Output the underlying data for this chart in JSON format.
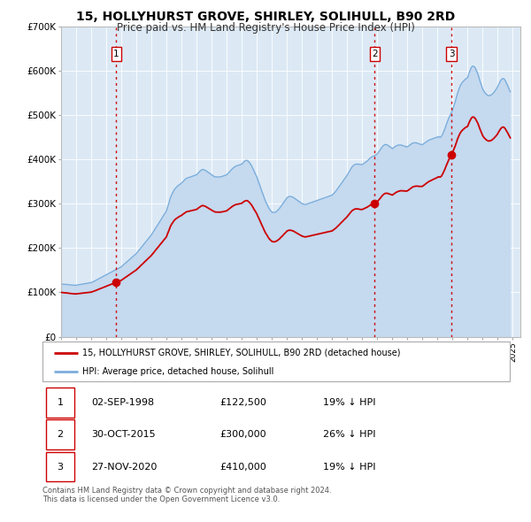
{
  "title": "15, HOLLYHURST GROVE, SHIRLEY, SOLIHULL, B90 2RD",
  "subtitle": "Price paid vs. HM Land Registry's House Price Index (HPI)",
  "title_fontsize": 10,
  "subtitle_fontsize": 8.5,
  "background_color": "#ffffff",
  "plot_bg_color": "#dce9f5",
  "ylim": [
    0,
    700000
  ],
  "yticks": [
    0,
    100000,
    200000,
    300000,
    400000,
    500000,
    600000,
    700000
  ],
  "ytick_labels": [
    "£0",
    "£100K",
    "£200K",
    "£300K",
    "£400K",
    "£500K",
    "£600K",
    "£700K"
  ],
  "xlim_start": 1995.0,
  "xlim_end": 2025.5,
  "sale_color": "#cc0000",
  "hpi_color": "#7aaddb",
  "hpi_fill_color": "#c5d9ef",
  "sale_marker_color": "#cc0000",
  "sale_marker_size": 7,
  "vline_color": "#cc0000",
  "sales": [
    {
      "date_num": 1998.67,
      "price": 122500,
      "label": "1"
    },
    {
      "date_num": 2015.83,
      "price": 300000,
      "label": "2"
    },
    {
      "date_num": 2020.92,
      "price": 410000,
      "label": "3"
    }
  ],
  "legend_entries": [
    "15, HOLLYHURST GROVE, SHIRLEY, SOLIHULL, B90 2RD (detached house)",
    "HPI: Average price, detached house, Solihull"
  ],
  "table_rows": [
    {
      "num": "1",
      "date": "02-SEP-1998",
      "price": "£122,500",
      "pct": "19% ↓ HPI"
    },
    {
      "num": "2",
      "date": "30-OCT-2015",
      "price": "£300,000",
      "pct": "26% ↓ HPI"
    },
    {
      "num": "3",
      "date": "27-NOV-2020",
      "price": "£410,000",
      "pct": "19% ↓ HPI"
    }
  ],
  "footnote": "Contains HM Land Registry data © Crown copyright and database right 2024.\nThis data is licensed under the Open Government Licence v3.0.",
  "grid_color": "#ffffff",
  "hpi_data": [
    [
      1995.0,
      119000
    ],
    [
      1995.08,
      118500
    ],
    [
      1995.17,
      118200
    ],
    [
      1995.25,
      117800
    ],
    [
      1995.33,
      118000
    ],
    [
      1995.42,
      117500
    ],
    [
      1995.5,
      117000
    ],
    [
      1995.58,
      116800
    ],
    [
      1995.67,
      116500
    ],
    [
      1995.75,
      116200
    ],
    [
      1995.83,
      116000
    ],
    [
      1995.92,
      115800
    ],
    [
      1996.0,
      116000
    ],
    [
      1996.08,
      116500
    ],
    [
      1996.17,
      117000
    ],
    [
      1996.25,
      117500
    ],
    [
      1996.33,
      118000
    ],
    [
      1996.42,
      118500
    ],
    [
      1996.5,
      119000
    ],
    [
      1996.58,
      119500
    ],
    [
      1996.67,
      120000
    ],
    [
      1996.75,
      120500
    ],
    [
      1996.83,
      121000
    ],
    [
      1996.92,
      121500
    ],
    [
      1997.0,
      122000
    ],
    [
      1997.08,
      123200
    ],
    [
      1997.17,
      124500
    ],
    [
      1997.25,
      126000
    ],
    [
      1997.33,
      127500
    ],
    [
      1997.42,
      129000
    ],
    [
      1997.5,
      130500
    ],
    [
      1997.58,
      132000
    ],
    [
      1997.67,
      133500
    ],
    [
      1997.75,
      135000
    ],
    [
      1997.83,
      136500
    ],
    [
      1997.92,
      138000
    ],
    [
      1998.0,
      139500
    ],
    [
      1998.08,
      141000
    ],
    [
      1998.17,
      142500
    ],
    [
      1998.25,
      144000
    ],
    [
      1998.33,
      145500
    ],
    [
      1998.42,
      147000
    ],
    [
      1998.5,
      148500
    ],
    [
      1998.58,
      150000
    ],
    [
      1998.67,
      151500
    ],
    [
      1998.75,
      153000
    ],
    [
      1998.83,
      154500
    ],
    [
      1998.92,
      156000
    ],
    [
      1999.0,
      157500
    ],
    [
      1999.08,
      160000
    ],
    [
      1999.17,
      162500
    ],
    [
      1999.25,
      165000
    ],
    [
      1999.33,
      167500
    ],
    [
      1999.42,
      170000
    ],
    [
      1999.5,
      172500
    ],
    [
      1999.58,
      175000
    ],
    [
      1999.67,
      177500
    ],
    [
      1999.75,
      180000
    ],
    [
      1999.83,
      182500
    ],
    [
      1999.92,
      185000
    ],
    [
      2000.0,
      187500
    ],
    [
      2000.08,
      191000
    ],
    [
      2000.17,
      194500
    ],
    [
      2000.25,
      198000
    ],
    [
      2000.33,
      201500
    ],
    [
      2000.42,
      205000
    ],
    [
      2000.5,
      208500
    ],
    [
      2000.58,
      212000
    ],
    [
      2000.67,
      215500
    ],
    [
      2000.75,
      219000
    ],
    [
      2000.83,
      222500
    ],
    [
      2000.92,
      226000
    ],
    [
      2001.0,
      229500
    ],
    [
      2001.08,
      234000
    ],
    [
      2001.17,
      238500
    ],
    [
      2001.25,
      243000
    ],
    [
      2001.33,
      247500
    ],
    [
      2001.42,
      252000
    ],
    [
      2001.5,
      256500
    ],
    [
      2001.58,
      261000
    ],
    [
      2001.67,
      265500
    ],
    [
      2001.75,
      270000
    ],
    [
      2001.83,
      274500
    ],
    [
      2001.92,
      279000
    ],
    [
      2002.0,
      283500
    ],
    [
      2002.08,
      293000
    ],
    [
      2002.17,
      302500
    ],
    [
      2002.25,
      312000
    ],
    [
      2002.33,
      319000
    ],
    [
      2002.42,
      325000
    ],
    [
      2002.5,
      330000
    ],
    [
      2002.58,
      334000
    ],
    [
      2002.67,
      337000
    ],
    [
      2002.75,
      340000
    ],
    [
      2002.83,
      342000
    ],
    [
      2002.92,
      344000
    ],
    [
      2003.0,
      346000
    ],
    [
      2003.08,
      349000
    ],
    [
      2003.17,
      352000
    ],
    [
      2003.25,
      355000
    ],
    [
      2003.33,
      357000
    ],
    [
      2003.42,
      358000
    ],
    [
      2003.5,
      359000
    ],
    [
      2003.58,
      360000
    ],
    [
      2003.67,
      361000
    ],
    [
      2003.75,
      362000
    ],
    [
      2003.83,
      363000
    ],
    [
      2003.92,
      364000
    ],
    [
      2004.0,
      365000
    ],
    [
      2004.08,
      368000
    ],
    [
      2004.17,
      371000
    ],
    [
      2004.25,
      374000
    ],
    [
      2004.33,
      376000
    ],
    [
      2004.42,
      377000
    ],
    [
      2004.5,
      376000
    ],
    [
      2004.58,
      375000
    ],
    [
      2004.67,
      373000
    ],
    [
      2004.75,
      371000
    ],
    [
      2004.83,
      369000
    ],
    [
      2004.92,
      367000
    ],
    [
      2005.0,
      365000
    ],
    [
      2005.08,
      363000
    ],
    [
      2005.17,
      361000
    ],
    [
      2005.25,
      360000
    ],
    [
      2005.33,
      360000
    ],
    [
      2005.42,
      360000
    ],
    [
      2005.5,
      360000
    ],
    [
      2005.58,
      360500
    ],
    [
      2005.67,
      361000
    ],
    [
      2005.75,
      362000
    ],
    [
      2005.83,
      363000
    ],
    [
      2005.92,
      364000
    ],
    [
      2006.0,
      365000
    ],
    [
      2006.08,
      368000
    ],
    [
      2006.17,
      371000
    ],
    [
      2006.25,
      374000
    ],
    [
      2006.33,
      377000
    ],
    [
      2006.42,
      380000
    ],
    [
      2006.5,
      382000
    ],
    [
      2006.58,
      384000
    ],
    [
      2006.67,
      385000
    ],
    [
      2006.75,
      386000
    ],
    [
      2006.83,
      387000
    ],
    [
      2006.92,
      388000
    ],
    [
      2007.0,
      389000
    ],
    [
      2007.08,
      392000
    ],
    [
      2007.17,
      395000
    ],
    [
      2007.25,
      397000
    ],
    [
      2007.33,
      397500
    ],
    [
      2007.42,
      396000
    ],
    [
      2007.5,
      393000
    ],
    [
      2007.58,
      389000
    ],
    [
      2007.67,
      384000
    ],
    [
      2007.75,
      378000
    ],
    [
      2007.83,
      372000
    ],
    [
      2007.92,
      366000
    ],
    [
      2008.0,
      360000
    ],
    [
      2008.08,
      352000
    ],
    [
      2008.17,
      344000
    ],
    [
      2008.25,
      336000
    ],
    [
      2008.33,
      328000
    ],
    [
      2008.42,
      320000
    ],
    [
      2008.5,
      312000
    ],
    [
      2008.58,
      305000
    ],
    [
      2008.67,
      299000
    ],
    [
      2008.75,
      293000
    ],
    [
      2008.83,
      288000
    ],
    [
      2008.92,
      284000
    ],
    [
      2009.0,
      281000
    ],
    [
      2009.08,
      280000
    ],
    [
      2009.17,
      280000
    ],
    [
      2009.25,
      281000
    ],
    [
      2009.33,
      283000
    ],
    [
      2009.42,
      286000
    ],
    [
      2009.5,
      289000
    ],
    [
      2009.58,
      293000
    ],
    [
      2009.67,
      297000
    ],
    [
      2009.75,
      301000
    ],
    [
      2009.83,
      305000
    ],
    [
      2009.92,
      309000
    ],
    [
      2010.0,
      313000
    ],
    [
      2010.08,
      315000
    ],
    [
      2010.17,
      316000
    ],
    [
      2010.25,
      316000
    ],
    [
      2010.33,
      315000
    ],
    [
      2010.42,
      314000
    ],
    [
      2010.5,
      312000
    ],
    [
      2010.58,
      310000
    ],
    [
      2010.67,
      308000
    ],
    [
      2010.75,
      306000
    ],
    [
      2010.83,
      304000
    ],
    [
      2010.92,
      302000
    ],
    [
      2011.0,
      300000
    ],
    [
      2011.08,
      299000
    ],
    [
      2011.17,
      298000
    ],
    [
      2011.25,
      298000
    ],
    [
      2011.33,
      299000
    ],
    [
      2011.42,
      300000
    ],
    [
      2011.5,
      301000
    ],
    [
      2011.58,
      302000
    ],
    [
      2011.67,
      303000
    ],
    [
      2011.75,
      304000
    ],
    [
      2011.83,
      305000
    ],
    [
      2011.92,
      306000
    ],
    [
      2012.0,
      307000
    ],
    [
      2012.08,
      308000
    ],
    [
      2012.17,
      309000
    ],
    [
      2012.25,
      310000
    ],
    [
      2012.33,
      311000
    ],
    [
      2012.42,
      312000
    ],
    [
      2012.5,
      313000
    ],
    [
      2012.58,
      314000
    ],
    [
      2012.67,
      315000
    ],
    [
      2012.75,
      316000
    ],
    [
      2012.83,
      317000
    ],
    [
      2012.92,
      318000
    ],
    [
      2013.0,
      319000
    ],
    [
      2013.08,
      322000
    ],
    [
      2013.17,
      325000
    ],
    [
      2013.25,
      328000
    ],
    [
      2013.33,
      332000
    ],
    [
      2013.42,
      336000
    ],
    [
      2013.5,
      340000
    ],
    [
      2013.58,
      344000
    ],
    [
      2013.67,
      348000
    ],
    [
      2013.75,
      352000
    ],
    [
      2013.83,
      356000
    ],
    [
      2013.92,
      360000
    ],
    [
      2014.0,
      364000
    ],
    [
      2014.08,
      369000
    ],
    [
      2014.17,
      374000
    ],
    [
      2014.25,
      379000
    ],
    [
      2014.33,
      383000
    ],
    [
      2014.42,
      386000
    ],
    [
      2014.5,
      388000
    ],
    [
      2014.58,
      389000
    ],
    [
      2014.67,
      389000
    ],
    [
      2014.75,
      389000
    ],
    [
      2014.83,
      388000
    ],
    [
      2014.92,
      388000
    ],
    [
      2015.0,
      388000
    ],
    [
      2015.08,
      390000
    ],
    [
      2015.17,
      392000
    ],
    [
      2015.25,
      394000
    ],
    [
      2015.33,
      396000
    ],
    [
      2015.42,
      399000
    ],
    [
      2015.5,
      402000
    ],
    [
      2015.58,
      404000
    ],
    [
      2015.67,
      406000
    ],
    [
      2015.75,
      407000
    ],
    [
      2015.83,
      408000
    ],
    [
      2015.92,
      410000
    ],
    [
      2016.0,
      412000
    ],
    [
      2016.08,
      416000
    ],
    [
      2016.17,
      420000
    ],
    [
      2016.25,
      424000
    ],
    [
      2016.33,
      428000
    ],
    [
      2016.42,
      431000
    ],
    [
      2016.5,
      433000
    ],
    [
      2016.58,
      433000
    ],
    [
      2016.67,
      432000
    ],
    [
      2016.75,
      430000
    ],
    [
      2016.83,
      428000
    ],
    [
      2016.92,
      426000
    ],
    [
      2017.0,
      424000
    ],
    [
      2017.08,
      426000
    ],
    [
      2017.17,
      428000
    ],
    [
      2017.25,
      430000
    ],
    [
      2017.33,
      431000
    ],
    [
      2017.42,
      432000
    ],
    [
      2017.5,
      432000
    ],
    [
      2017.58,
      432000
    ],
    [
      2017.67,
      431000
    ],
    [
      2017.75,
      430000
    ],
    [
      2017.83,
      429000
    ],
    [
      2017.92,
      428000
    ],
    [
      2018.0,
      428000
    ],
    [
      2018.08,
      430000
    ],
    [
      2018.17,
      432000
    ],
    [
      2018.25,
      434000
    ],
    [
      2018.33,
      436000
    ],
    [
      2018.42,
      437000
    ],
    [
      2018.5,
      437000
    ],
    [
      2018.58,
      437000
    ],
    [
      2018.67,
      436000
    ],
    [
      2018.75,
      435000
    ],
    [
      2018.83,
      434000
    ],
    [
      2018.92,
      433000
    ],
    [
      2019.0,
      433000
    ],
    [
      2019.08,
      435000
    ],
    [
      2019.17,
      437000
    ],
    [
      2019.25,
      439000
    ],
    [
      2019.33,
      441000
    ],
    [
      2019.42,
      443000
    ],
    [
      2019.5,
      444000
    ],
    [
      2019.58,
      445000
    ],
    [
      2019.67,
      446000
    ],
    [
      2019.75,
      447000
    ],
    [
      2019.83,
      448000
    ],
    [
      2019.92,
      449000
    ],
    [
      2020.0,
      450000
    ],
    [
      2020.08,
      451000
    ],
    [
      2020.17,
      449000
    ],
    [
      2020.25,
      451000
    ],
    [
      2020.33,
      456000
    ],
    [
      2020.42,
      463000
    ],
    [
      2020.5,
      470000
    ],
    [
      2020.58,
      478000
    ],
    [
      2020.67,
      486000
    ],
    [
      2020.75,
      493000
    ],
    [
      2020.83,
      499000
    ],
    [
      2020.92,
      505000
    ],
    [
      2021.0,
      511000
    ],
    [
      2021.08,
      520000
    ],
    [
      2021.17,
      529000
    ],
    [
      2021.25,
      539000
    ],
    [
      2021.33,
      549000
    ],
    [
      2021.42,
      558000
    ],
    [
      2021.5,
      565000
    ],
    [
      2021.58,
      570000
    ],
    [
      2021.67,
      574000
    ],
    [
      2021.75,
      577000
    ],
    [
      2021.83,
      580000
    ],
    [
      2021.92,
      582000
    ],
    [
      2022.0,
      584000
    ],
    [
      2022.08,
      593000
    ],
    [
      2022.17,
      601000
    ],
    [
      2022.25,
      607000
    ],
    [
      2022.33,
      610000
    ],
    [
      2022.42,
      609000
    ],
    [
      2022.5,
      606000
    ],
    [
      2022.58,
      600000
    ],
    [
      2022.67,
      593000
    ],
    [
      2022.75,
      584000
    ],
    [
      2022.83,
      575000
    ],
    [
      2022.92,
      566000
    ],
    [
      2023.0,
      558000
    ],
    [
      2023.08,
      553000
    ],
    [
      2023.17,
      549000
    ],
    [
      2023.25,
      546000
    ],
    [
      2023.33,
      544000
    ],
    [
      2023.42,
      543000
    ],
    [
      2023.5,
      544000
    ],
    [
      2023.58,
      545000
    ],
    [
      2023.67,
      548000
    ],
    [
      2023.75,
      551000
    ],
    [
      2023.83,
      555000
    ],
    [
      2023.92,
      559000
    ],
    [
      2024.0,
      564000
    ],
    [
      2024.08,
      570000
    ],
    [
      2024.17,
      576000
    ],
    [
      2024.25,
      580000
    ],
    [
      2024.33,
      582000
    ],
    [
      2024.42,
      581000
    ],
    [
      2024.5,
      577000
    ],
    [
      2024.58,
      571000
    ],
    [
      2024.67,
      565000
    ],
    [
      2024.75,
      558000
    ],
    [
      2024.83,
      552000
    ]
  ]
}
